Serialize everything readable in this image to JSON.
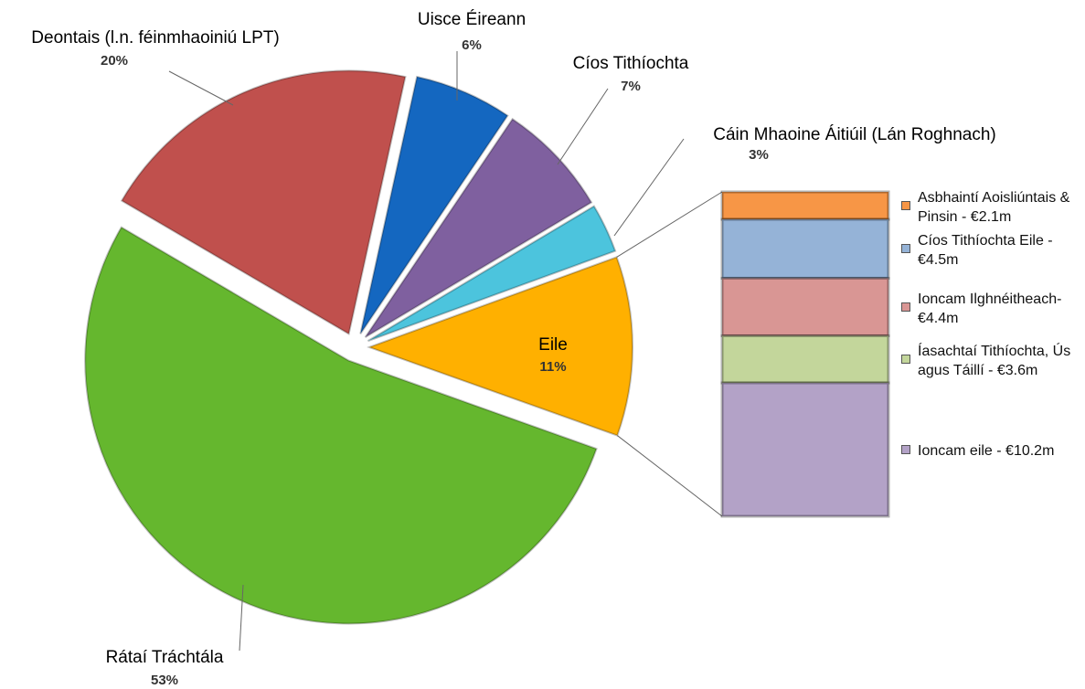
{
  "chart_data": {
    "type": "pie-of-bar",
    "categories": [
      "Rátaí Tráchtála",
      "Deontais (l.n. féinmhaoiniú LPT)",
      "Uisce Éireann",
      "Cíos Tithíochta",
      "Cáin Mhaoine Áitiúil (Lán Roghnach)",
      "Eile"
    ],
    "values": [
      53,
      20,
      6,
      7,
      3,
      11
    ],
    "value_labels": [
      "53%",
      "20%",
      "6%",
      "7%",
      "3%",
      "11%"
    ],
    "colors": [
      "#65b72e",
      "#c0504d",
      "#1467c0",
      "#7f609f",
      "#4cc4dd",
      "#ffb000"
    ],
    "bar": {
      "series": [
        {
          "name": "Asbhaintí Aoisliúntais & Pinsin - €2.1m",
          "color": "#f79646",
          "values": [
            2.1
          ]
        },
        {
          "name": "Cíos Tithíochta Eile - €4.5m",
          "color": "#95b3d7",
          "values": [
            4.5
          ]
        },
        {
          "name": "Ioncam Ilghnéitheach- €4.4m",
          "color": "#d99694",
          "values": [
            4.4
          ]
        },
        {
          "name": "Íasachtaí Tithíochta, Ús agus Táillí - €3.6m",
          "color": "#c3d69b",
          "values": [
            3.6
          ]
        },
        {
          "name": "Ioncam eile - €10.2m",
          "color": "#b3a2c7",
          "values": [
            10.2
          ]
        }
      ]
    }
  }
}
